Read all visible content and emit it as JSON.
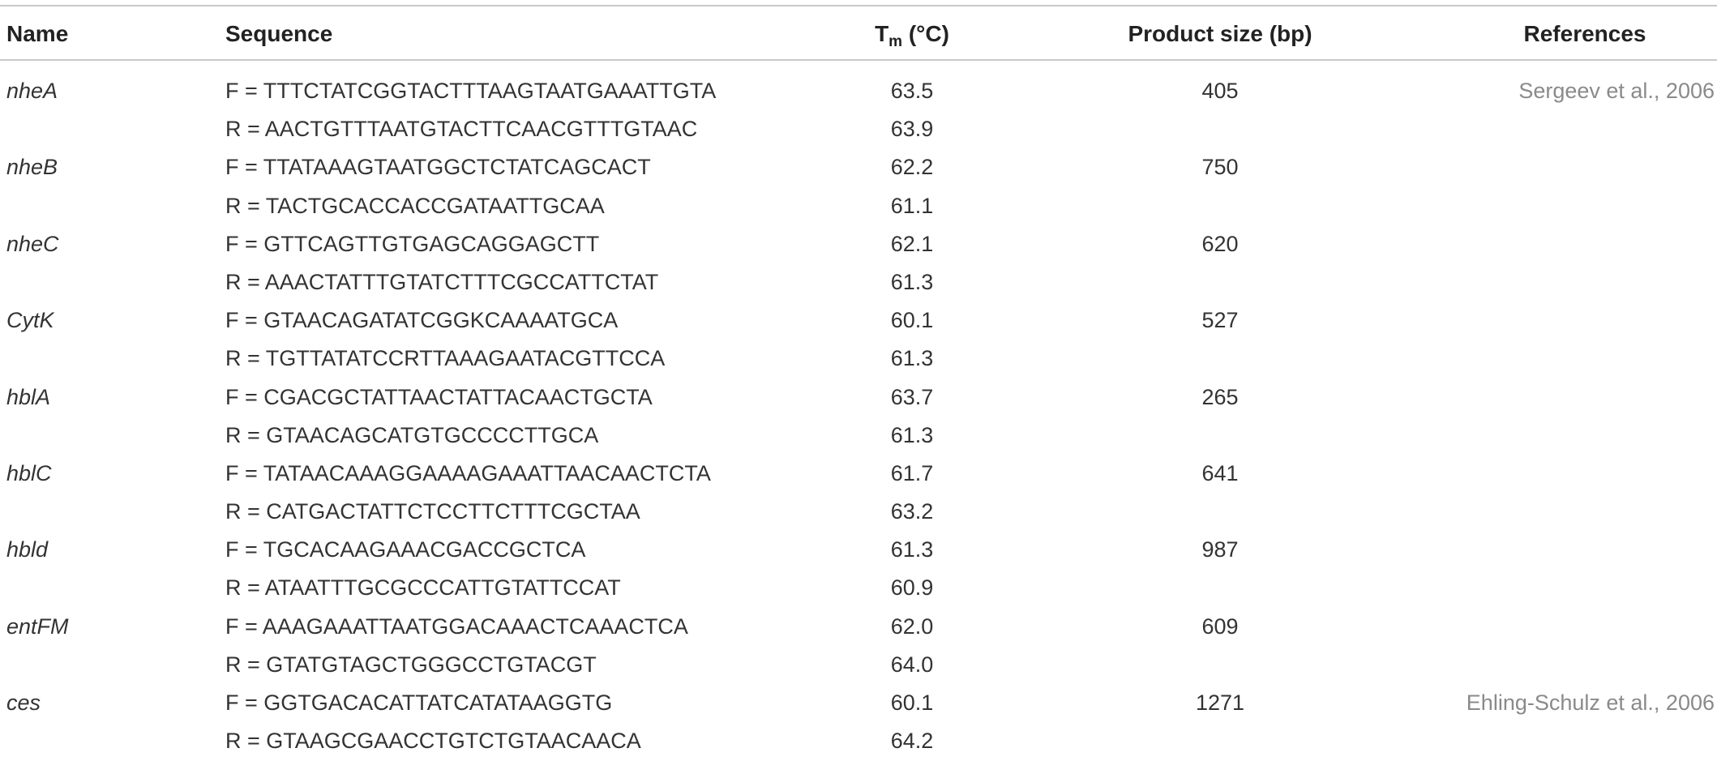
{
  "header": {
    "name": "Name",
    "sequence": "Sequence",
    "tm_main": "T",
    "tm_sub": "m",
    "tm_unit": " (°C)",
    "product_size": "Product size (bp)",
    "references": "References"
  },
  "rows": [
    {
      "name": "nheA",
      "sequence": "F = TTTCTATCGGTACTTTAAGTAATGAAATTGTA",
      "tm": "63.5",
      "size": "405",
      "ref": "Sergeev et al., 2006"
    },
    {
      "name": "",
      "sequence": "R = AACTGTTTAATGTACTTCAACGTTTGTAAC",
      "tm": "63.9",
      "size": "",
      "ref": ""
    },
    {
      "name": "nheB",
      "sequence": "F = TTATAAAGTAATGGCTCTATCAGCACT",
      "tm": "62.2",
      "size": "750",
      "ref": ""
    },
    {
      "name": "",
      "sequence": "R = TACTGCACCACCGATAATTGCAA",
      "tm": "61.1",
      "size": "",
      "ref": ""
    },
    {
      "name": "nheC",
      "sequence": "F = GTTCAGTTGTGAGCAGGAGCTT",
      "tm": "62.1",
      "size": "620",
      "ref": ""
    },
    {
      "name": "",
      "sequence": "R = AAACTATTTGTATCTTTCGCCATTCTAT",
      "tm": "61.3",
      "size": "",
      "ref": ""
    },
    {
      "name": "CytK",
      "sequence": "F = GTAACAGATATCGGKCAAAATGCA",
      "tm": "60.1",
      "size": "527",
      "ref": ""
    },
    {
      "name": "",
      "sequence": "R = TGTTATATCCRTTAAAGAATACGTTCCA",
      "tm": "61.3",
      "size": "",
      "ref": ""
    },
    {
      "name": "hblA",
      "sequence": "F = CGACGCTATTAACTATTACAACTGCTA",
      "tm": "63.7",
      "size": "265",
      "ref": ""
    },
    {
      "name": "",
      "sequence": "R = GTAACAGCATGTGCCCCTTGCA",
      "tm": "61.3",
      "size": "",
      "ref": ""
    },
    {
      "name": "hblC",
      "sequence": "F = TATAACAAAGGAAAAGAAATTAACAACTCTA",
      "tm": "61.7",
      "size": "641",
      "ref": ""
    },
    {
      "name": "",
      "sequence": "R = CATGACTATTCTCCTTCTTTCGCTAA",
      "tm": "63.2",
      "size": "",
      "ref": ""
    },
    {
      "name": "hbld",
      "sequence": "F = TGCACAAGAAACGACCGCTCA",
      "tm": "61.3",
      "size": "987",
      "ref": ""
    },
    {
      "name": "",
      "sequence": "R = ATAATTTGCGCCCATTGTATTCCAT",
      "tm": "60.9",
      "size": "",
      "ref": ""
    },
    {
      "name": "entFM",
      "sequence": "F = AAAGAAATTAATGGACAAACTCAAACTCA",
      "tm": "62.0",
      "size": "609",
      "ref": ""
    },
    {
      "name": "",
      "sequence": "R = GTATGTAGCTGGGCCTGTACGT",
      "tm": "64.0",
      "size": "",
      "ref": ""
    },
    {
      "name": "ces",
      "sequence": "F = GGTGACACATTATCATATAAGGTG",
      "tm": "60.1",
      "size": "1271",
      "ref": "Ehling-Schulz et al., 2006"
    },
    {
      "name": "",
      "sequence": "R = GTAAGCGAACCTGTCTGTAACAACA",
      "tm": "64.2",
      "size": "",
      "ref": ""
    }
  ]
}
